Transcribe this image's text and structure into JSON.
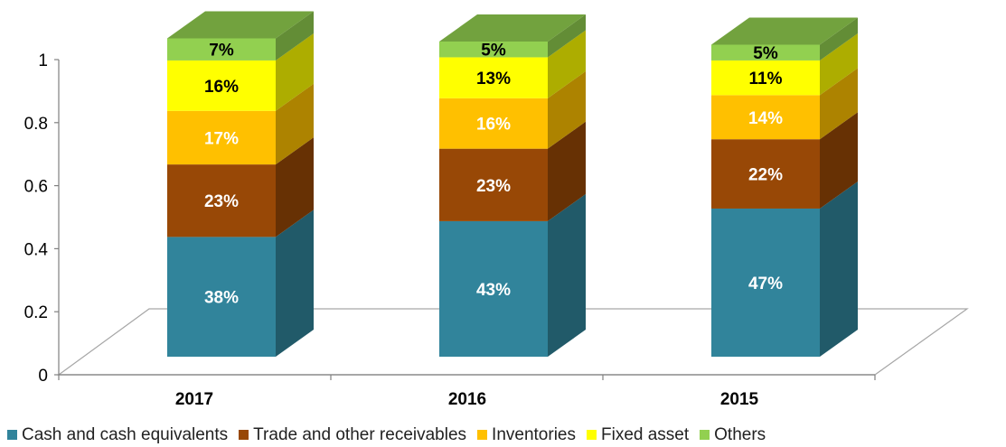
{
  "chart_data": {
    "type": "bar",
    "stacked": true,
    "three_d": true,
    "categories": [
      "2017",
      "2016",
      "2015"
    ],
    "yticks": [
      "0",
      "0.2",
      "0.4",
      "0.6",
      "0.8",
      "1"
    ],
    "ylim": [
      0,
      1
    ],
    "legend_position": "bottom",
    "series": [
      {
        "name": "Cash and cash equivalents",
        "values": [
          0.38,
          0.43,
          0.47
        ],
        "labels": [
          "38%",
          "43%",
          "47%"
        ],
        "color": "#31849B",
        "label_color": "#ffffff"
      },
      {
        "name": "Trade and other receivables",
        "values": [
          0.23,
          0.23,
          0.22
        ],
        "labels": [
          "23%",
          "23%",
          "22%"
        ],
        "color": "#984806",
        "label_color": "#ffffff"
      },
      {
        "name": "Inventories",
        "values": [
          0.17,
          0.16,
          0.14
        ],
        "labels": [
          "17%",
          "16%",
          "14%"
        ],
        "color": "#FFC000",
        "label_color": "#ffffff"
      },
      {
        "name": "Fixed asset",
        "values": [
          0.16,
          0.13,
          0.11
        ],
        "labels": [
          "16%",
          "13%",
          "11%"
        ],
        "color": "#FFFF00",
        "label_color": "#000000"
      },
      {
        "name": "Others",
        "values": [
          0.07,
          0.05,
          0.05
        ],
        "labels": [
          "7%",
          "5%",
          "5%"
        ],
        "color": "#92D050",
        "label_color": "#000000"
      }
    ]
  }
}
